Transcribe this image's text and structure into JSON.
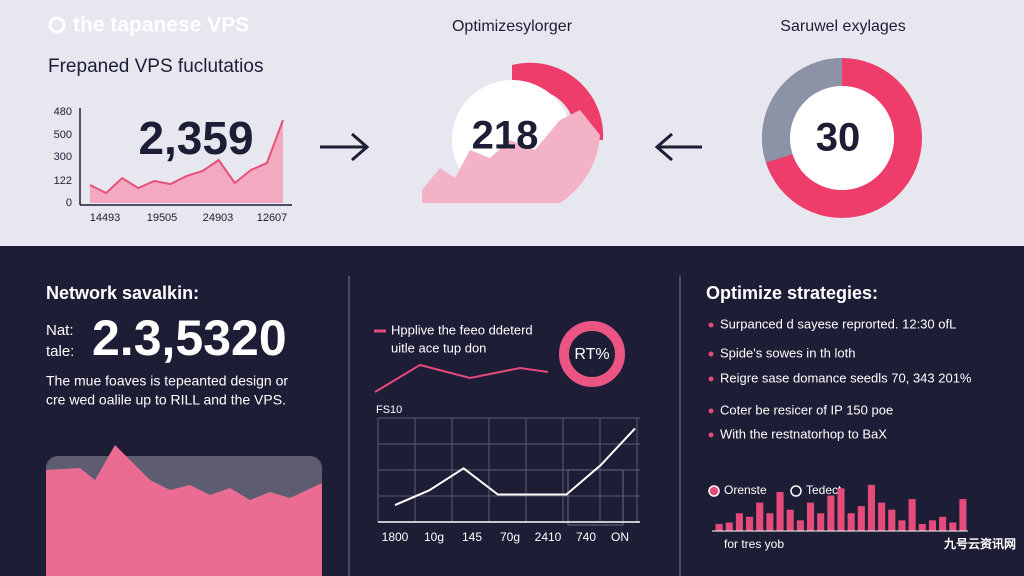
{
  "header": {
    "brand": "the tapanese VPS"
  },
  "top_left": {
    "title": "Frepaned VPS fuclutatios",
    "big_number": "2,359",
    "y_tick_labels": [
      "480",
      "500",
      "300",
      "122",
      "0"
    ],
    "x_tick_labels": [
      "14493",
      "19505",
      "24903",
      "12607"
    ],
    "chart": {
      "type": "area",
      "ylim": [
        0,
        500
      ],
      "color": "#e8507a",
      "fill": "#f3a9c0",
      "values": [
        99,
        55,
        137,
        82,
        121,
        104,
        148,
        176,
        236,
        110,
        181,
        220,
        456
      ]
    }
  },
  "top_middle": {
    "title": "Optimizesylorger",
    "big_number": "218"
  },
  "top_right": {
    "title": "Saruwel exylages",
    "big_number": "30",
    "chart": {
      "type": "donut",
      "value": 30,
      "color": "#8d93a6",
      "ring_color": "#ef3d6b"
    }
  },
  "bottom_left": {
    "title": "Network savalkin:",
    "label_1": "Nat:",
    "label_2": "tale:",
    "big_number": "2.3,5320",
    "text_lines": [
      "The mue foaves is tepeanted design or",
      "cre wed oalile up to RILL and the VPS."
    ]
  },
  "bottom_middle": {
    "legend_lines": [
      "Hpplive the feeo ddeterd",
      "uitle ace tup don"
    ],
    "ring_label": "RT%",
    "axis_label": "FS10",
    "x_tick_labels": [
      "1800",
      "10g",
      "145",
      "70g",
      "2410",
      "740",
      "ON"
    ],
    "chart": {
      "type": "line",
      "ylim": [
        0,
        100
      ],
      "color": "#ffffff",
      "values": [
        19,
        33,
        54,
        29,
        29,
        29,
        57,
        92
      ]
    }
  },
  "bottom_right": {
    "title": "Optimize strategies:",
    "bullets": [
      "Surpanced d sayese reprorted. 12:30 ofL",
      "Spide's sowes in th loth",
      "Reigre sase domance seedls 70, 343 201%",
      "Coter be resicer of IP 150 poe",
      "With the restnatorhop to BaX"
    ],
    "legend": [
      "Orenste",
      "Tedect."
    ],
    "footer": "for tres yob",
    "chart": {
      "type": "bar",
      "ylim": [
        0,
        100
      ],
      "color": "#e44a7a",
      "values": [
        10,
        12,
        25,
        20,
        40,
        25,
        55,
        30,
        15,
        40,
        25,
        50,
        60,
        25,
        35,
        65,
        40,
        30,
        15,
        45,
        10,
        15,
        20,
        12,
        45
      ]
    }
  },
  "watermark": "九号云资讯网"
}
